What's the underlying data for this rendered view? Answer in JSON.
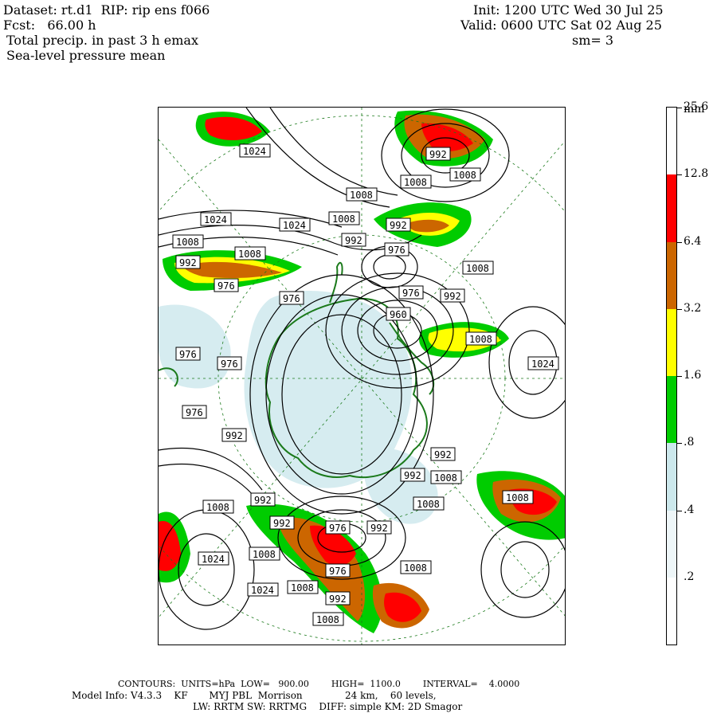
{
  "header": {
    "line1_left": "Dataset: rt.d1  RIP: rip ens f066",
    "line2_left": "Fcst:   66.00 h",
    "line3_left": "Total precip. in past 3 h emax",
    "line4_left": "Sea-level pressure mean",
    "line1_right": "Init: 1200 UTC Wed 30 Jul 25",
    "line2_right": "Valid: 0600 UTC Sat 02 Aug 25",
    "line3_right": "sm= 3"
  },
  "colorbar": {
    "unit": "mm",
    "labels": [
      "25.6",
      "12.8",
      "6.4",
      "3.2",
      "1.6",
      ".8",
      ".4",
      ".2"
    ],
    "colors": [
      "#ffffff",
      "#ff0000",
      "#cc6600",
      "#ffff00",
      "#00cc00",
      "#cce8ec",
      "#eef6f8",
      "#ffffff"
    ]
  },
  "isobar_labels": [
    {
      "text": "1024"
    },
    {
      "text": "992"
    },
    {
      "text": "1008"
    },
    {
      "text": "1008"
    },
    {
      "text": "1024"
    },
    {
      "text": "1024"
    },
    {
      "text": "1008"
    },
    {
      "text": "1008"
    },
    {
      "text": "992"
    },
    {
      "text": "992"
    },
    {
      "text": "976"
    },
    {
      "text": "1008"
    },
    {
      "text": "1008"
    },
    {
      "text": "992"
    },
    {
      "text": "976"
    },
    {
      "text": "976"
    },
    {
      "text": "976"
    },
    {
      "text": "960"
    },
    {
      "text": "1008"
    },
    {
      "text": "1024"
    },
    {
      "text": "976"
    },
    {
      "text": "976"
    },
    {
      "text": "1008"
    },
    {
      "text": "992"
    },
    {
      "text": "976"
    },
    {
      "text": "992"
    },
    {
      "text": "992"
    },
    {
      "text": "992"
    },
    {
      "text": "1008"
    },
    {
      "text": "992"
    },
    {
      "text": "1008"
    },
    {
      "text": "1008"
    },
    {
      "text": "992"
    },
    {
      "text": "1008"
    },
    {
      "text": "976"
    },
    {
      "text": "992"
    },
    {
      "text": "1024"
    },
    {
      "text": "1008"
    },
    {
      "text": "976"
    },
    {
      "text": "1008"
    },
    {
      "text": "1024"
    },
    {
      "text": "1008"
    },
    {
      "text": "992"
    },
    {
      "text": "1008"
    }
  ],
  "footer": {
    "line1": "CONTOURS:  UNITS=hPa  LOW=   900.00        HIGH=  1100.0        INTERVAL=    4.0000",
    "line2": "Model Info: V4.3.3    KF       MYJ PBL  Morrison              24 km,    60 levels,",
    "line3": "LW: RRTM SW: RRTMG    DIFF: simple KM: 2D Smagor"
  }
}
